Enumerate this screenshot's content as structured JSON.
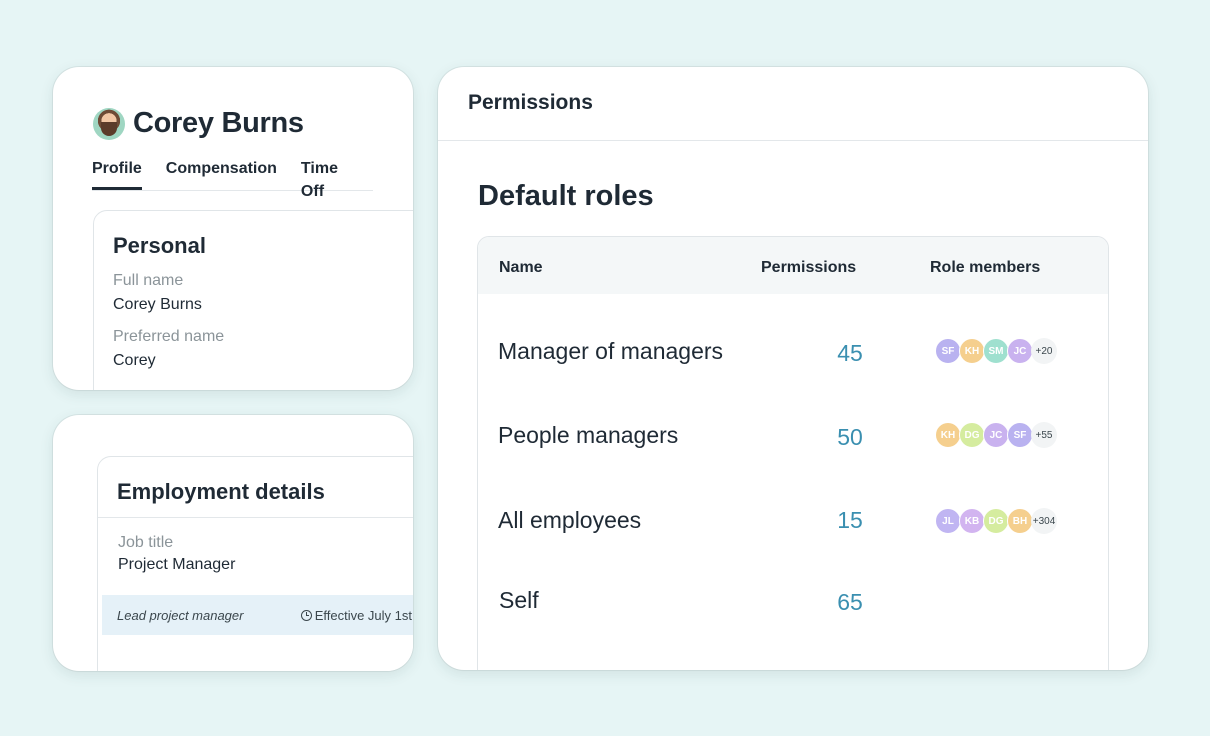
{
  "profile": {
    "name": "Corey Burns",
    "tabs": [
      "Profile",
      "Compensation",
      "Time Off"
    ],
    "personal": {
      "title": "Personal",
      "full_name_label": "Full name",
      "full_name_value": "Corey Burns",
      "preferred_name_label": "Preferred name",
      "preferred_name_value": "Corey"
    }
  },
  "employment": {
    "title": "Employment details",
    "job_title_label": "Job title",
    "job_title_value": "Project Manager",
    "note": "Lead project manager",
    "effective": "Effective July 1st"
  },
  "permissions": {
    "title": "Permissions",
    "heading": "Default roles",
    "columns": [
      "Name",
      "Permissions",
      "Role members"
    ],
    "rows": [
      {
        "name": "Manager of managers",
        "count": "45",
        "members": [
          {
            "initials": "SF",
            "color": "#b9b2f0"
          },
          {
            "initials": "KH",
            "color": "#f5cf8e"
          },
          {
            "initials": "SM",
            "color": "#9fe0cf"
          },
          {
            "initials": "JC",
            "color": "#c9b2ef"
          }
        ],
        "more": "+20"
      },
      {
        "name": "People managers",
        "count": "50",
        "members": [
          {
            "initials": "KH",
            "color": "#f5cf8e"
          },
          {
            "initials": "DG",
            "color": "#d5ec9f"
          },
          {
            "initials": "JC",
            "color": "#c9b2ef"
          },
          {
            "initials": "SF",
            "color": "#b9b2f0"
          }
        ],
        "more": "+55"
      },
      {
        "name": "All employees",
        "count": "15",
        "members": [
          {
            "initials": "JL",
            "color": "#c0b5f2"
          },
          {
            "initials": "KB",
            "color": "#d2b4f0"
          },
          {
            "initials": "DG",
            "color": "#d5ec9f"
          },
          {
            "initials": "BH",
            "color": "#f5cf8e"
          }
        ],
        "more": "+304"
      },
      {
        "name": "Self",
        "count": "65",
        "members": [],
        "more": ""
      }
    ]
  }
}
